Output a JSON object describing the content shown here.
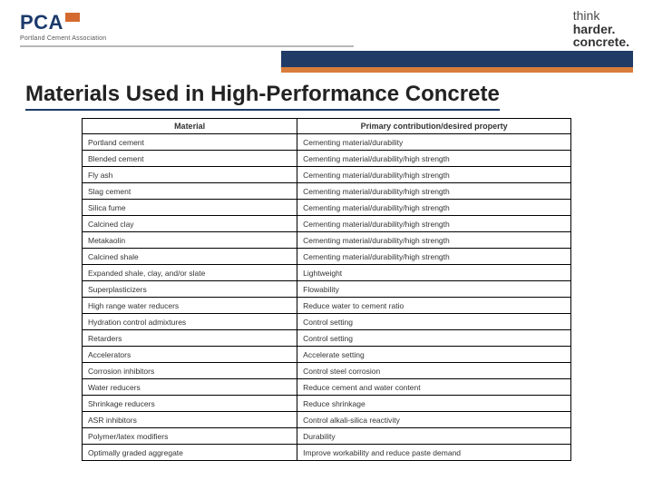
{
  "header": {
    "logo_text": "PCA",
    "logo_subtitle": "Portland Cement Association",
    "tagline_line1": "think",
    "tagline_line2": "harder.",
    "tagline_line3": "concrete."
  },
  "title": "Materials Used in High-Performance Concrete",
  "table": {
    "columns": [
      "Material",
      "Primary contribution/desired property"
    ],
    "rows": [
      [
        "Portland cement",
        "Cementing material/durability"
      ],
      [
        "Blended cement",
        "Cementing material/durability/high strength"
      ],
      [
        "Fly ash",
        "Cementing material/durability/high strength"
      ],
      [
        "Slag cement",
        "Cementing material/durability/high strength"
      ],
      [
        "Silica fume",
        "Cementing material/durability/high strength"
      ],
      [
        "Calcined clay",
        "Cementing material/durability/high strength"
      ],
      [
        "Metakaolin",
        "Cementing material/durability/high strength"
      ],
      [
        "Calcined shale",
        "Cementing material/durability/high strength"
      ],
      [
        "Expanded shale, clay, and/or slate",
        "Lightweight"
      ],
      [
        "Superplasticizers",
        "Flowability"
      ],
      [
        "High range water reducers",
        "Reduce water to cement ratio"
      ],
      [
        "Hydration control admixtures",
        "Control setting"
      ],
      [
        "Retarders",
        "Control setting"
      ],
      [
        "Accelerators",
        "Accelerate setting"
      ],
      [
        "Corrosion inhibitors",
        "Control steel corrosion"
      ],
      [
        "Water reducers",
        "Reduce cement and water content"
      ],
      [
        "Shrinkage reducers",
        "Reduce shrinkage"
      ],
      [
        "ASR inhibitors",
        "Control alkali-silica reactivity"
      ],
      [
        "Polymer/latex modifiers",
        "Durability"
      ],
      [
        "Optimally graded aggregate",
        "Improve workability and reduce paste demand"
      ]
    ],
    "col_widths": [
      "44%",
      "56%"
    ],
    "border_color": "#000000",
    "font_size": 8.5,
    "header_font_size": 9
  },
  "colors": {
    "blue_bar": "#1f3b66",
    "orange_bar": "#d87d3c",
    "grey_line": "#b8b8b8",
    "logo_blue": "#1b3a6b",
    "logo_orange": "#d46a2e"
  }
}
